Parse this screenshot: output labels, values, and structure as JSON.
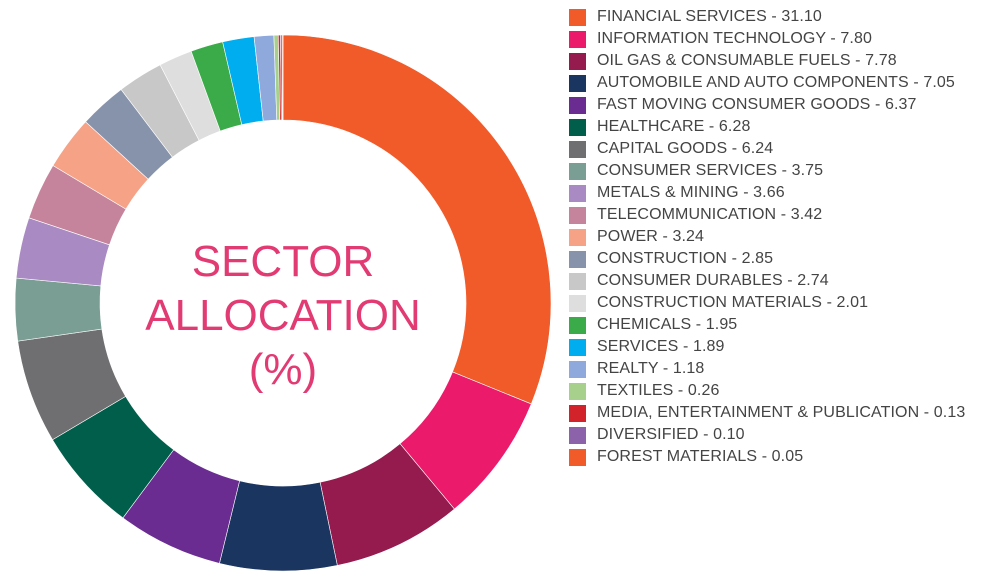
{
  "chart_data": {
    "type": "pie",
    "subtype": "donut",
    "title": "SECTOR ALLOCATION (%)",
    "title_lines": [
      "SECTOR",
      "ALLOCATION",
      "(%)"
    ],
    "legend_position": "right",
    "start": "top",
    "direction": "clockwise",
    "slices": [
      {
        "label": "FINANCIAL SERVICES - 31.10",
        "name": "FINANCIAL SERVICES",
        "value": 31.1,
        "color": "#f15a29"
      },
      {
        "label": "INFORMATION TECHNOLOGY - 7.80",
        "name": "INFORMATION TECHNOLOGY",
        "value": 7.8,
        "color": "#ec1a6a"
      },
      {
        "label": "OIL GAS & CONSUMABLE FUELS - 7.78",
        "name": "OIL GAS & CONSUMABLE FUELS",
        "value": 7.78,
        "color": "#951a4d"
      },
      {
        "label": "AUTOMOBILE AND AUTO COMPONENTS - 7.05",
        "name": "AUTOMOBILE AND AUTO COMPONENTS",
        "value": 7.05,
        "color": "#1b3561"
      },
      {
        "label": "FAST MOVING CONSUMER GOODS - 6.37",
        "name": "FAST MOVING CONSUMER GOODS",
        "value": 6.37,
        "color": "#6a2c91"
      },
      {
        "label": "HEALTHCARE - 6.28",
        "name": "HEALTHCARE",
        "value": 6.28,
        "color": "#005e4b"
      },
      {
        "label": "CAPITAL GOODS - 6.24",
        "name": "CAPITAL GOODS",
        "value": 6.24,
        "color": "#6f6f71"
      },
      {
        "label": "CONSUMER SERVICES - 3.75",
        "name": "CONSUMER SERVICES",
        "value": 3.75,
        "color": "#7a9e94"
      },
      {
        "label": "METALS & MINING - 3.66",
        "name": "METALS & MINING",
        "value": 3.66,
        "color": "#aa8ac2"
      },
      {
        "label": "TELECOMMUNICATION - 3.42",
        "name": "TELECOMMUNICATION",
        "value": 3.42,
        "color": "#c6849c"
      },
      {
        "label": "POWER - 3.24",
        "name": "POWER",
        "value": 3.24,
        "color": "#f6a286"
      },
      {
        "label": "CONSTRUCTION - 2.85",
        "name": "CONSTRUCTION",
        "value": 2.85,
        "color": "#8793ab"
      },
      {
        "label": "CONSUMER DURABLES - 2.74",
        "name": "CONSUMER DURABLES",
        "value": 2.74,
        "color": "#c8c8c8"
      },
      {
        "label": "CONSTRUCTION MATERIALS - 2.01",
        "name": "CONSTRUCTION MATERIALS",
        "value": 2.01,
        "color": "#dedede"
      },
      {
        "label": "CHEMICALS - 1.95",
        "name": "CHEMICALS",
        "value": 1.95,
        "color": "#3bab49"
      },
      {
        "label": "SERVICES - 1.89",
        "name": "SERVICES",
        "value": 1.89,
        "color": "#00aeef"
      },
      {
        "label": "REALTY - 1.18",
        "name": "REALTY",
        "value": 1.18,
        "color": "#8fa9dd"
      },
      {
        "label": "TEXTILES - 0.26",
        "name": "TEXTILES",
        "value": 0.26,
        "color": "#a6d08c"
      },
      {
        "label": "MEDIA, ENTERTAINMENT & PUBLICATION - 0.13",
        "name": "MEDIA, ENTERTAINMENT & PUBLICATION",
        "value": 0.13,
        "color": "#d2232a"
      },
      {
        "label": "DIVERSIFIED - 0.10",
        "name": "DIVERSIFIED",
        "value": 0.1,
        "color": "#8c62aa"
      },
      {
        "label": "FOREST MATERIALS - 0.05",
        "name": "FOREST MATERIALS",
        "value": 0.05,
        "color": "#f15a29"
      }
    ]
  }
}
